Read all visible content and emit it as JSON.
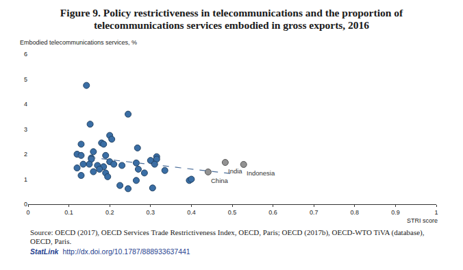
{
  "chart_data": {
    "type": "scatter",
    "title": "Figure 9. Policy restrictiveness in telecommunications and the proportion of telecommunications services embodied in gross exports, 2016",
    "y_label": "Embodied telecommunications services, %",
    "x_label": "STRI score",
    "source": "Source: OECD (2017), OECD Services Trade Restrictiveness Index, OECD, Paris; OECD (2017b), OECD-WTO TiVA (database), OECD, Paris.",
    "statlink": {
      "label": "StatLink",
      "url": "http://dx.doi.org/10.1787/888933637441"
    },
    "xlim": [
      0,
      1
    ],
    "xticks": [
      0,
      0.1,
      0.2,
      0.3,
      0.4,
      0.5,
      0.6,
      0.7,
      0.8,
      0.9,
      1
    ],
    "ylim": [
      0,
      6
    ],
    "yticks": [
      0,
      1,
      2,
      3,
      4,
      5,
      6
    ],
    "grid": false,
    "series": [
      {
        "type": "scatter",
        "marker": "circle",
        "color": "#3a6ea5",
        "x": [
          0.143,
          0.245,
          0.152,
          0.2,
          0.205,
          0.18,
          0.185,
          0.13,
          0.268,
          0.16,
          0.12,
          0.13,
          0.19,
          0.155,
          0.155,
          0.315,
          0.315,
          0.3,
          0.2,
          0.21,
          0.15,
          0.135,
          0.17,
          0.185,
          0.23,
          0.265,
          0.31,
          0.12,
          0.175,
          0.27,
          0.335,
          0.16,
          0.19,
          0.13,
          0.195,
          0.285,
          0.265,
          0.225,
          0.245,
          0.305,
          0.395,
          0.4
        ],
        "values": [
          4.75,
          3.6,
          3.2,
          2.75,
          2.6,
          2.45,
          2.4,
          2.4,
          2.25,
          2.1,
          2.0,
          1.95,
          1.95,
          1.85,
          1.8,
          1.9,
          1.8,
          1.75,
          1.7,
          1.6,
          1.6,
          1.6,
          1.55,
          1.5,
          1.55,
          1.65,
          1.6,
          1.45,
          1.4,
          1.4,
          1.35,
          1.3,
          1.25,
          1.15,
          1.1,
          1.25,
          0.95,
          0.75,
          0.62,
          0.65,
          0.95,
          1.0
        ]
      },
      {
        "type": "scatter",
        "marker": "circle",
        "color": "#929292",
        "x": [
          0.441,
          0.483,
          0.528
        ],
        "values": [
          1.29,
          1.67,
          1.59
        ]
      },
      {
        "type": "line",
        "line_style": "dashed",
        "color": "#4a6d99",
        "x": [
          0.12,
          0.51
        ],
        "values": [
          1.93,
          1.2
        ]
      }
    ],
    "annotations": [
      {
        "text": "China",
        "x": 0.441,
        "y": 1.29
      },
      {
        "text": "India",
        "x": 0.483,
        "y": 1.67
      },
      {
        "text": "Indonesia",
        "x": 0.528,
        "y": 1.59
      }
    ]
  }
}
